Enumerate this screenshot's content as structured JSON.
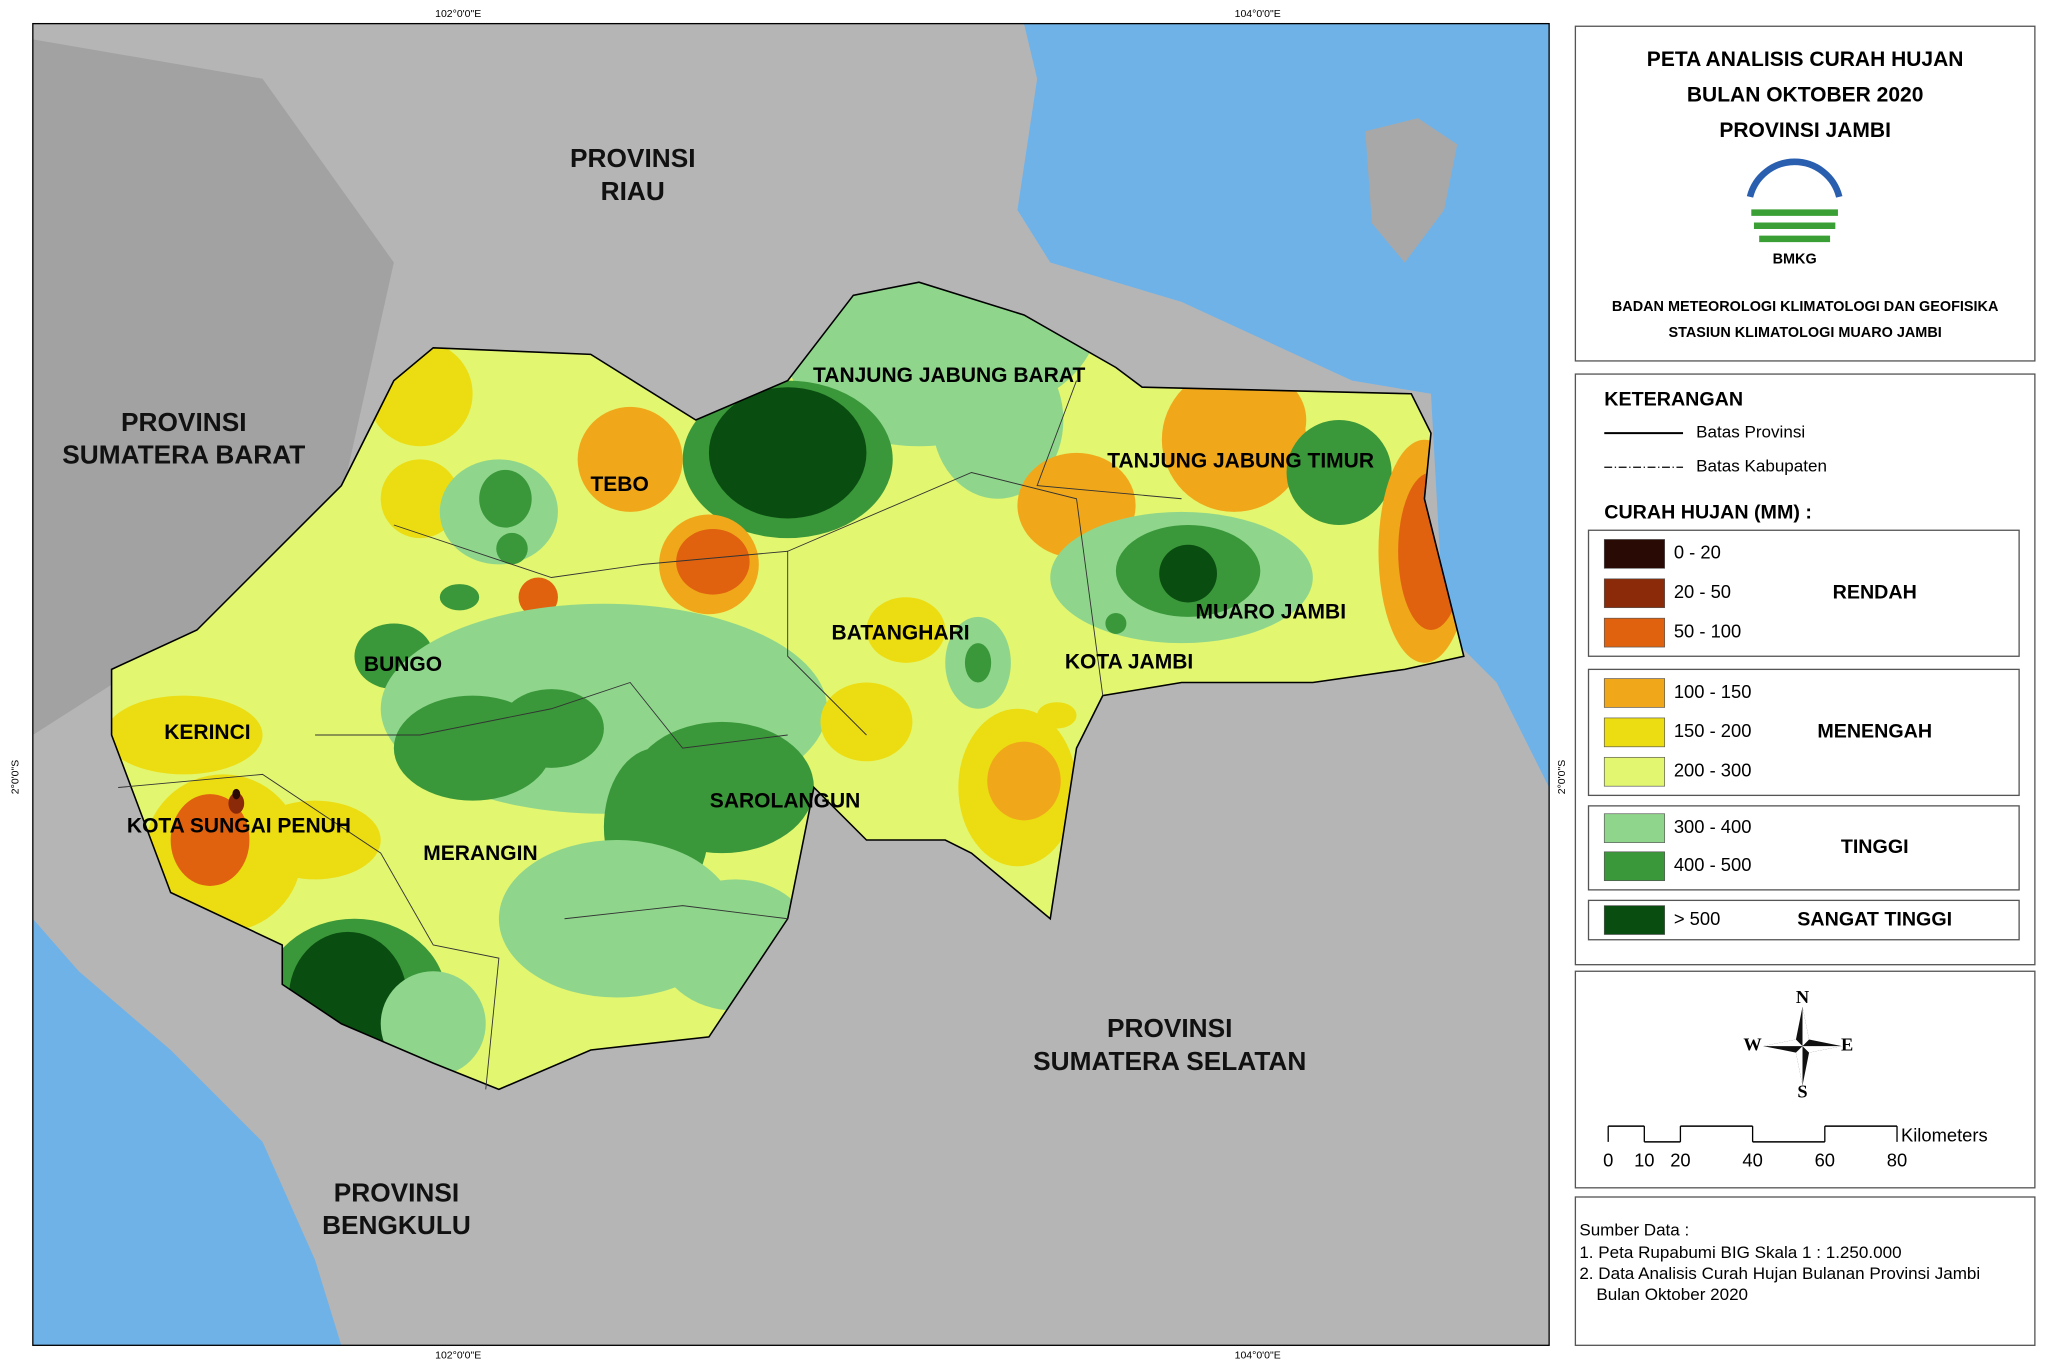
{
  "title": [
    "PETA ANALISIS CURAH HUJAN",
    "BULAN OKTOBER 2020",
    "PROVINSI JAMBI"
  ],
  "logo_text": "BMKG",
  "agency": [
    "BADAN METEOROLOGI KLIMATOLOGI DAN GEOFISIKA",
    "STASIUN KLIMATOLOGI MUARO JAMBI"
  ],
  "grid_labels": {
    "top": [
      "102°0'0\"E",
      "104°0'0\"E"
    ],
    "bottom": [
      "102°0'0\"E",
      "104°0'0\"E"
    ],
    "left": [
      "2°0'0\"S"
    ],
    "right": [
      "2°0'0\"S"
    ]
  },
  "provinces": [
    [
      "PROVINSI",
      "RIAU"
    ],
    [
      "PROVINSI",
      "SUMATERA BARAT"
    ],
    [
      "PROVINSI",
      "SUMATERA SELATAN"
    ],
    [
      "PROVINSI",
      "BENGKULU"
    ]
  ],
  "regencies": [
    "TANJUNG JABUNG BARAT",
    "TEBO",
    "TANJUNG JABUNG TIMUR",
    "BATANGHARI",
    "MUARO JAMBI",
    "KOTA JAMBI",
    "BUNGO",
    "KERINCI",
    "KOTA SUNGAI PENUH",
    "SAROLANGUN",
    "MERANGIN"
  ],
  "legend": {
    "title": "KETERANGAN",
    "lines": [
      "Batas Provinsi",
      "Batas Kabupaten"
    ],
    "rain_title": "CURAH HUJAN (MM) :",
    "groups": [
      {
        "name": "RENDAH",
        "classes": [
          {
            "label": "0 - 20",
            "color": "#2a0a05"
          },
          {
            "label": "20 - 50",
            "color": "#8b2a08"
          },
          {
            "label": "50 - 100",
            "color": "#e0620f"
          }
        ]
      },
      {
        "name": "MENENGAH",
        "classes": [
          {
            "label": "100 - 150",
            "color": "#f0a81a"
          },
          {
            "label": "150 - 200",
            "color": "#ecdc12"
          },
          {
            "label": "200 - 300",
            "color": "#e3f66f"
          }
        ]
      },
      {
        "name": "TINGGI",
        "classes": [
          {
            "label": "300 - 400",
            "color": "#8fd68c"
          },
          {
            "label": "400 - 500",
            "color": "#3a983a"
          }
        ]
      },
      {
        "name": "SANGAT TINGGI",
        "classes": [
          {
            "label": "> 500",
            "color": "#0a4d10"
          }
        ]
      }
    ]
  },
  "compass": [
    "N",
    "W",
    "E",
    "S"
  ],
  "scale": {
    "unit": "Kilometers",
    "ticks": [
      0,
      10,
      20,
      40,
      60,
      80
    ]
  },
  "source": {
    "title": "Sumber Data :",
    "items": [
      "1. Peta Rupabumi BIG Skala 1 : 1.250.000",
      "2. Data Analisis Curah Hujan Bulanan Provinsi Jambi",
      "Bulan Oktober 2020"
    ]
  }
}
